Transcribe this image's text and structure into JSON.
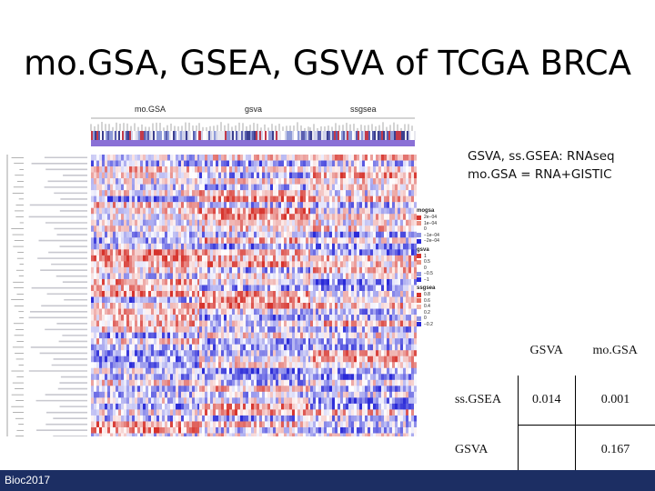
{
  "slide": {
    "title": "mo.GSA, GSEA, GSVA of TCGA BRCA",
    "footer": "Bioc2017"
  },
  "heatmap": {
    "panels": [
      "mo.GSA",
      "gsva",
      "ssgsea"
    ],
    "row_count": 48
  },
  "note": {
    "line1": "GSVA, ss.GSEA: RNAseq",
    "line2": "mo.GSA = RNA+GISTIC"
  },
  "legend": {
    "groups": [
      {
        "title": "mogsa",
        "entries": [
          {
            "label": "2e−04",
            "color": "#d6322b"
          },
          {
            "label": "1e−04",
            "color": "#ea8f7f"
          },
          {
            "label": "0",
            "color": "#ffffff"
          },
          {
            "label": "−1e−04",
            "color": "#8d93e0"
          },
          {
            "label": "−2e−04",
            "color": "#2a2ad8"
          }
        ]
      },
      {
        "title": "gsva",
        "entries": [
          {
            "label": "1",
            "color": "#d6322b"
          },
          {
            "label": "0.5",
            "color": "#ea8f7f"
          },
          {
            "label": "0",
            "color": "#ffffff"
          },
          {
            "label": "−0.5",
            "color": "#8d93e0"
          },
          {
            "label": "−1",
            "color": "#2a2ad8"
          }
        ]
      },
      {
        "title": "ssgsea",
        "entries": [
          {
            "label": "0.8",
            "color": "#d6322b"
          },
          {
            "label": "0.6",
            "color": "#e6705f"
          },
          {
            "label": "0.4",
            "color": "#f3b3a6"
          },
          {
            "label": "0.2",
            "color": "#ffffff"
          },
          {
            "label": "0",
            "color": "#8d93e0"
          },
          {
            "label": "−0.2",
            "color": "#2a2ad8"
          }
        ]
      }
    ]
  },
  "stats_table": {
    "header": [
      "",
      "GSVA",
      "mo.GSA"
    ],
    "rows": [
      {
        "label": "ss.GSEA",
        "gsva": "0.014",
        "mogsa": "0.001"
      },
      {
        "label": "GSVA",
        "gsva": "",
        "mogsa": "0.167"
      }
    ]
  },
  "colors": {
    "footer_bg": "#1c2e63",
    "heat_red": "#d6322b",
    "heat_blue": "#2a2ad8",
    "bar_purple": "#8a70d6"
  }
}
